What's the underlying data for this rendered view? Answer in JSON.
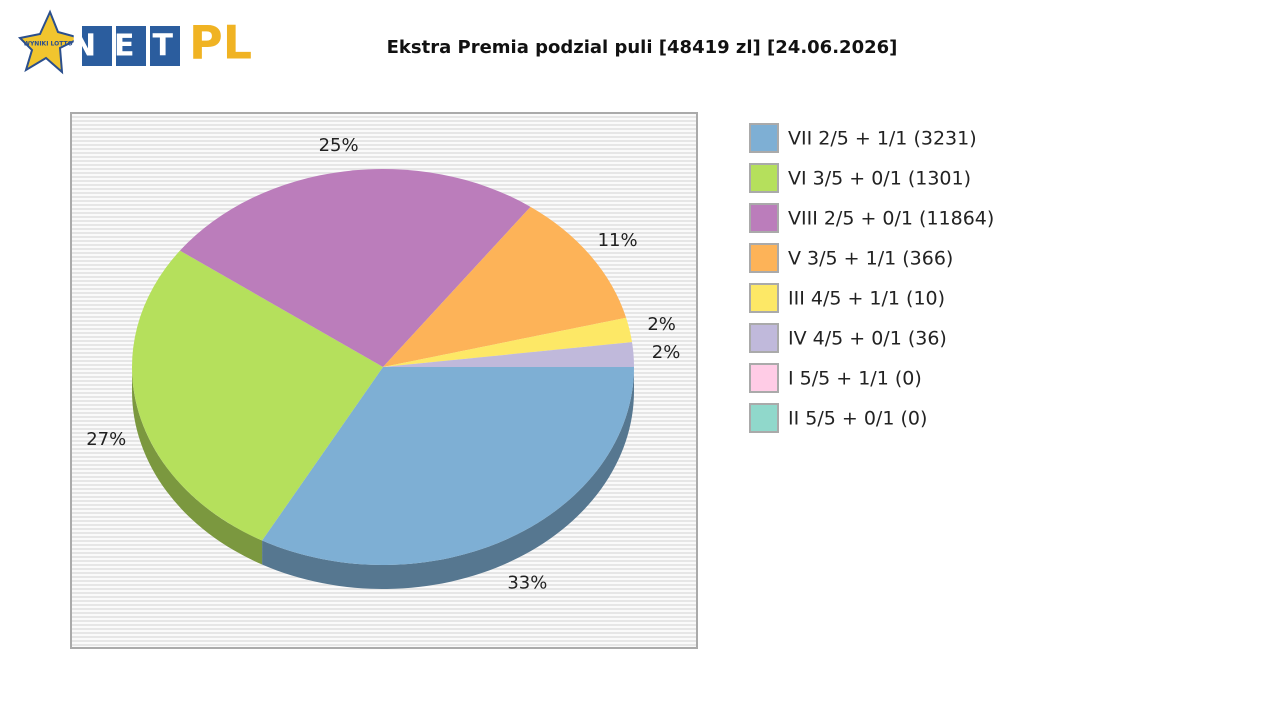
{
  "header": {
    "logo_small": "WYNIKI LOTTO",
    "logo_net": "NET",
    "logo_pl": "PL"
  },
  "chart_data": {
    "type": "pie",
    "title": "Ekstra Premia podzial puli [48419 zl] [24.06.2026]",
    "categories": [
      "VII 2/5 + 1/1 (3231)",
      "VI 3/5 + 0/1 (1301)",
      "VIII 2/5 + 0/1 (11864)",
      "V 3/5 + 1/1 (366)",
      "III 4/5 + 1/1 (10)",
      "IV 4/5 + 0/1 (36)",
      "I 5/5 + 1/1 (0)",
      "II 5/5 + 0/1 (0)"
    ],
    "values": [
      33,
      27,
      25,
      11,
      2,
      2,
      0,
      0
    ],
    "value_labels": [
      "33%",
      "27%",
      "25%",
      "11%",
      "2%",
      "2%",
      null,
      null
    ],
    "colors": [
      "#7eafd4",
      "#b5e05c",
      "#bb7dbb",
      "#fdb358",
      "#fde866",
      "#c0b9db",
      "#ffcce6",
      "#90d8cb"
    ],
    "legend": "right"
  }
}
